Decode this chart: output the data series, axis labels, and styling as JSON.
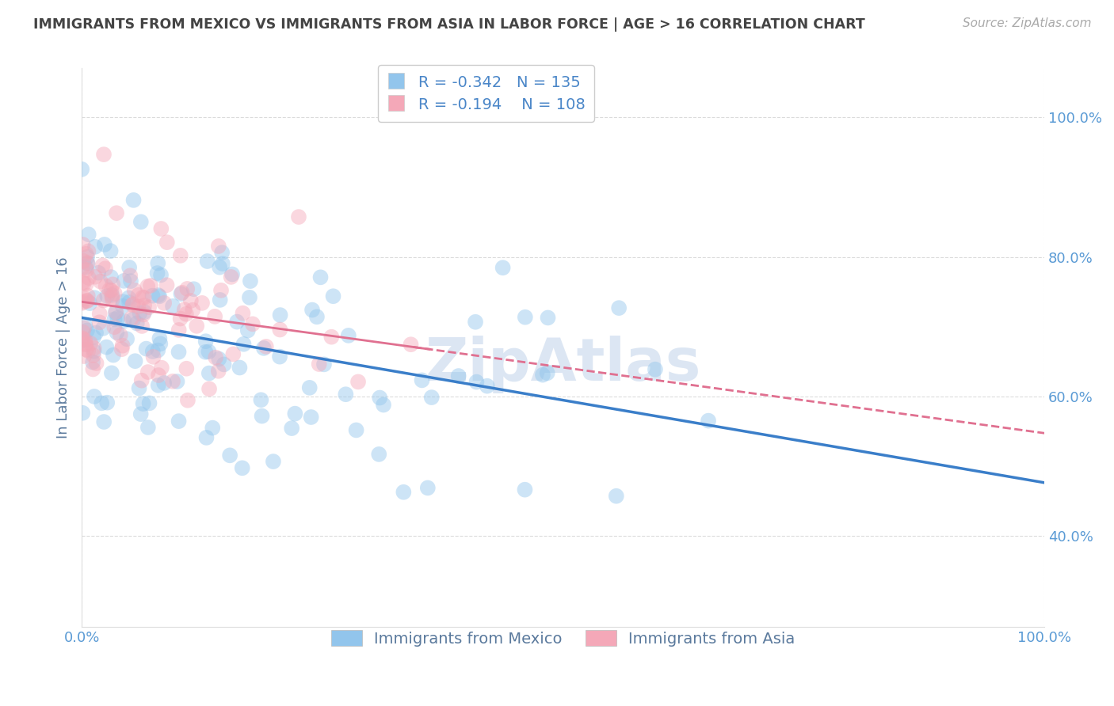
{
  "title": "IMMIGRANTS FROM MEXICO VS IMMIGRANTS FROM ASIA IN LABOR FORCE | AGE > 16 CORRELATION CHART",
  "source": "Source: ZipAtlas.com",
  "ylabel": "In Labor Force | Age > 16",
  "xlim": [
    0.0,
    1.0
  ],
  "ylim": [
    0.27,
    1.07
  ],
  "yticks": [
    0.4,
    0.6,
    0.8,
    1.0
  ],
  "ytick_labels": [
    "40.0%",
    "60.0%",
    "80.0%",
    "100.0%"
  ],
  "xticks": [
    0.0,
    1.0
  ],
  "xtick_labels": [
    "0.0%",
    "100.0%"
  ],
  "legend_labels": [
    "Immigrants from Mexico",
    "Immigrants from Asia"
  ],
  "r_mexico": -0.342,
  "n_mexico": 135,
  "r_asia": -0.194,
  "n_asia": 108,
  "color_mexico": "#92C5EC",
  "color_asia": "#F4A8B8",
  "trendline_color_mexico": "#3A7EC9",
  "trendline_color_asia": "#E07090",
  "background_color": "#FFFFFF",
  "grid_color": "#CCCCCC",
  "title_color": "#444444",
  "source_color": "#AAAAAA",
  "watermark_text": "ZipAtlas",
  "watermark_color": "#BBCFE8"
}
